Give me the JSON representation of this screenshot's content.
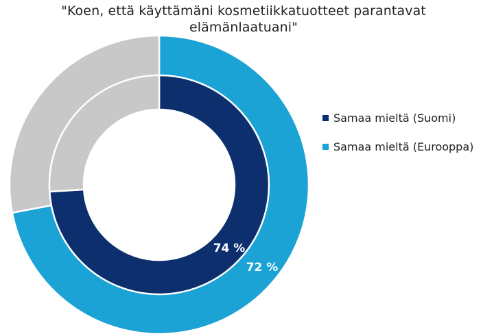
{
  "chart_data": {
    "type": "donut",
    "title": "\"Koen, että käyttämäni kosmetiikkatuotteet parantavat elämänlaatuani\"",
    "series": [
      {
        "name": "Samaa mieltä (Suomi)",
        "ring": "inner",
        "value": 74,
        "value_label": "74 %",
        "color": "#0d2f6e",
        "remainder_color": "#c8c8c8"
      },
      {
        "name": "Samaa mieltä (Eurooppa)",
        "ring": "outer",
        "value": 72,
        "value_label": "72 %",
        "color": "#1aa3d4",
        "remainder_color": "#c8c8c8"
      }
    ],
    "legend_position": "right"
  }
}
